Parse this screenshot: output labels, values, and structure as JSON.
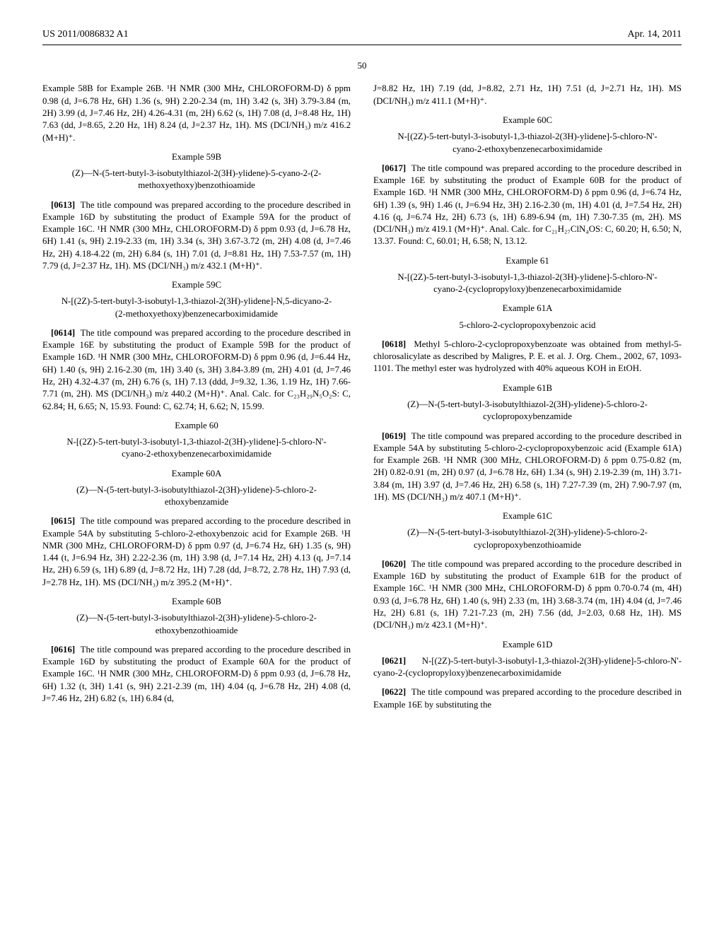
{
  "header": {
    "left": "US 2011/0086832 A1",
    "right": "Apr. 14, 2011"
  },
  "page_number": "50",
  "col1": {
    "p1": "Example 58B for Example 26B. ¹H NMR (300 MHz, CHLOROFORM-D) δ ppm 0.98 (d, J=6.78 Hz, 6H) 1.36 (s, 9H) 2.20-2.34 (m, 1H) 3.42 (s, 3H) 3.79-3.84 (m, 2H) 3.99 (d, J=7.46 Hz, 2H) 4.26-4.31 (m, 2H) 6.62 (s, 1H) 7.08 (d, J=8.48 Hz, 1H) 7.63 (dd, J=8.65, 2.20 Hz, 1H) 8.24 (d, J=2.37 Hz, 1H). MS (DCI/NH₃) m/z 416.2 (M+H)⁺.",
    "ex59B_num": "Example 59B",
    "ex59B_title": "(Z)—N-(5-tert-butyl-3-isobutylthiazol-2(3H)-ylidene)-5-cyano-2-(2-methoxyethoxy)benzothioamide",
    "p2_num": "[0613]",
    "p2": "The title compound was prepared according to the procedure described in Example 16D by substituting the product of Example 59A for the product of Example 16C. ¹H NMR (300 MHz, CHLOROFORM-D) δ ppm 0.93 (d, J=6.78 Hz, 6H) 1.41 (s, 9H) 2.19-2.33 (m, 1H) 3.34 (s, 3H) 3.67-3.72 (m, 2H) 4.08 (d, J=7.46 Hz, 2H) 4.18-4.22 (m, 2H) 6.84 (s, 1H) 7.01 (d, J=8.81 Hz, 1H) 7.53-7.57 (m, 1H) 7.79 (d, J=2.37 Hz, 1H). MS (DCI/NH₃) m/z 432.1 (M+H)⁺.",
    "ex59C_num": "Example 59C",
    "ex59C_title": "N-[(2Z)-5-tert-butyl-3-isobutyl-1,3-thiazol-2(3H)-ylidene]-N,5-dicyano-2-(2-methoxyethoxy)benzenecarboximidamide",
    "p3_num": "[0614]",
    "p3": "The title compound was prepared according to the procedure described in Example 16E by substituting the product of Example 59B for the product of Example 16D. ¹H NMR (300 MHz, CHLOROFORM-D) δ ppm 0.96 (d, J=6.44 Hz, 6H) 1.40 (s, 9H) 2.16-2.30 (m, 1H) 3.40 (s, 3H) 3.84-3.89 (m, 2H) 4.01 (d, J=7.46 Hz, 2H) 4.32-4.37 (m, 2H) 6.76 (s, 1H) 7.13 (ddd, J=9.32, 1.36, 1.19 Hz, 1H) 7.66-7.71 (m, 2H). MS (DCI/NH₃) m/z 440.2 (M+H)⁺. Anal. Calc. for C₂₃H₂₉N₅O₂S: C, 62.84; H, 6.65; N, 15.93. Found: C, 62.74; H, 6.62; N, 15.99.",
    "ex60_num": "Example 60",
    "ex60_title": "N-[(2Z)-5-tert-butyl-3-isobutyl-1,3-thiazol-2(3H)-ylidene]-5-chloro-N'-cyano-2-ethoxybenzenecarboximidamide",
    "ex60A_num": "Example 60A",
    "ex60A_title": "(Z)—N-(5-tert-butyl-3-isobutylthiazol-2(3H)-ylidene)-5-chloro-2-ethoxybenzamide",
    "p4_num": "[0615]",
    "p4": "The title compound was prepared according to the procedure described in Example 54A by substituting 5-chloro-2-ethoxybenzoic acid for Example 26B. ¹H NMR (300 MHz, CHLOROFORM-D) δ ppm 0.97 (d, J=6.74 Hz, 6H) 1.35 (s, 9H) 1.44 (t, J=6.94 Hz, 3H) 2.22-2.36 (m, 1H) 3.98 (d, J=7.14 Hz, 2H) 4.13 (q, J=7.14 Hz, 2H) 6.59 (s, 1H) 6.89 (d, J=8.72 Hz, 1H) 7.28 (dd, J=8.72, 2.78 Hz, 1H) 7.93 (d, J=2.78 Hz, 1H). MS (DCI/NH₃) m/z 395.2 (M+H)⁺.",
    "ex60B_num": "Example 60B",
    "ex60B_title": "(Z)—N-(5-tert-butyl-3-isobutylthiazol-2(3H)-ylidene)-5-chloro-2-ethoxybenzothioamide",
    "p5_num": "[0616]",
    "p5": "The title compound was prepared according to the procedure described in Example 16D by substituting the product of Example 60A for the product of Example 16C. ¹H NMR (300 MHz, CHLOROFORM-D) δ ppm 0.93 (d, J=6.78 Hz, 6H) 1.32 (t, 3H) 1.41 (s, 9H) 2.21-2.39 (m, 1H) 4.04 (q, J=6.78 Hz, 2H) 4.08 (d, J=7.46 Hz, 2H) 6.82 (s, 1H) 6.84 (d,"
  },
  "col2": {
    "p1": "J=8.82 Hz, 1H) 7.19 (dd, J=8.82, 2.71 Hz, 1H) 7.51 (d, J=2.71 Hz, 1H). MS (DCI/NH₃) m/z 411.1 (M+H)⁺.",
    "ex60C_num": "Example 60C",
    "ex60C_title": "N-[(2Z)-5-tert-butyl-3-isobutyl-1,3-thiazol-2(3H)-ylidene]-5-chloro-N'-cyano-2-ethoxybenzenecarboximidamide",
    "p2_num": "[0617]",
    "p2": "The title compound was prepared according to the procedure described in Example 16E by substituting the product of Example 60B for the product of Example 16D. ¹H NMR (300 MHz, CHLOROFORM-D) δ ppm 0.96 (d, J=6.74 Hz, 6H) 1.39 (s, 9H) 1.46 (t, J=6.94 Hz, 3H) 2.16-2.30 (m, 1H) 4.01 (d, J=7.54 Hz, 2H) 4.16 (q, J=6.74 Hz, 2H) 6.73 (s, 1H) 6.89-6.94 (m, 1H) 7.30-7.35 (m, 2H). MS (DCI/NH₃) m/z 419.1 (M+H)⁺. Anal. Calc. for C₂₁H₂₇ClN₄OS: C, 60.20; H, 6.50; N, 13.37. Found: C, 60.01; H, 6.58; N, 13.12.",
    "ex61_num": "Example 61",
    "ex61_title": "N-[(2Z)-5-tert-butyl-3-isobutyl-1,3-thiazol-2(3H)-ylidene]-5-chloro-N'-cyano-2-(cyclopropyloxy)benzenecarboximidamide",
    "ex61A_num": "Example 61A",
    "ex61A_title": "5-chloro-2-cyclopropoxybenzoic acid",
    "p3_num": "[0618]",
    "p3": "Methyl 5-chloro-2-cyclopropoxybenzoate was obtained from methyl-5-chlorosalicylate as described by Maligres, P. E. et al. J. Org. Chem., 2002, 67, 1093-1101. The methyl ester was hydrolyzed with 40% aqueous KOH in EtOH.",
    "ex61B_num": "Example 61B",
    "ex61B_title": "(Z)—N-(5-tert-butyl-3-isobutylthiazol-2(3H)-ylidene)-5-chloro-2-cyclopropoxybenzamide",
    "p4_num": "[0619]",
    "p4": "The title compound was prepared according to the procedure described in Example 54A by substituting 5-chloro-2-cyclopropoxybenzoic acid (Example 61A) for Example 26B. ¹H NMR (300 MHz, CHLOROFORM-D) δ ppm 0.75-0.82 (m, 2H) 0.82-0.91 (m, 2H) 0.97 (d, J=6.78 Hz, 6H) 1.34 (s, 9H) 2.19-2.39 (m, 1H) 3.71-3.84 (m, 1H) 3.97 (d, J=7.46 Hz, 2H) 6.58 (s, 1H) 7.27-7.39 (m, 2H) 7.90-7.97 (m, 1H). MS (DCI/NH₃) m/z 407.1 (M+H)⁺.",
    "ex61C_num": "Example 61C",
    "ex61C_title": "(Z)—N-(5-tert-butyl-3-isobutylthiazol-2(3H)-ylidene)-5-chloro-2-cyclopropoxybenzothioamide",
    "p5_num": "[0620]",
    "p5": "The title compound was prepared according to the procedure described in Example 16D by substituting the product of Example 61B for the product of Example 16C. ¹H NMR (300 MHz, CHLOROFORM-D) δ ppm 0.70-0.74 (m, 4H) 0.93 (d, J=6.78 Hz, 6H) 1.40 (s, 9H) 2.33 (m, 1H) 3.68-3.74 (m, 1H) 4.04 (d, J=7.46 Hz, 2H) 6.81 (s, 1H) 7.21-7.23 (m, 2H) 7.56 (dd, J=2.03, 0.68 Hz, 1H). MS (DCI/NH₃) m/z 423.1 (M+H)⁺.",
    "ex61D_num": "Example 61D",
    "p6_num": "[0621]",
    "p6": "N-[(2Z)-5-tert-butyl-3-isobutyl-1,3-thiazol-2(3H)-ylidene]-5-chloro-N'-cyano-2-(cyclopropyloxy)benzenecarboximidamide",
    "p7_num": "[0622]",
    "p7": "The title compound was prepared according to the procedure described in Example 16E by substituting the"
  }
}
